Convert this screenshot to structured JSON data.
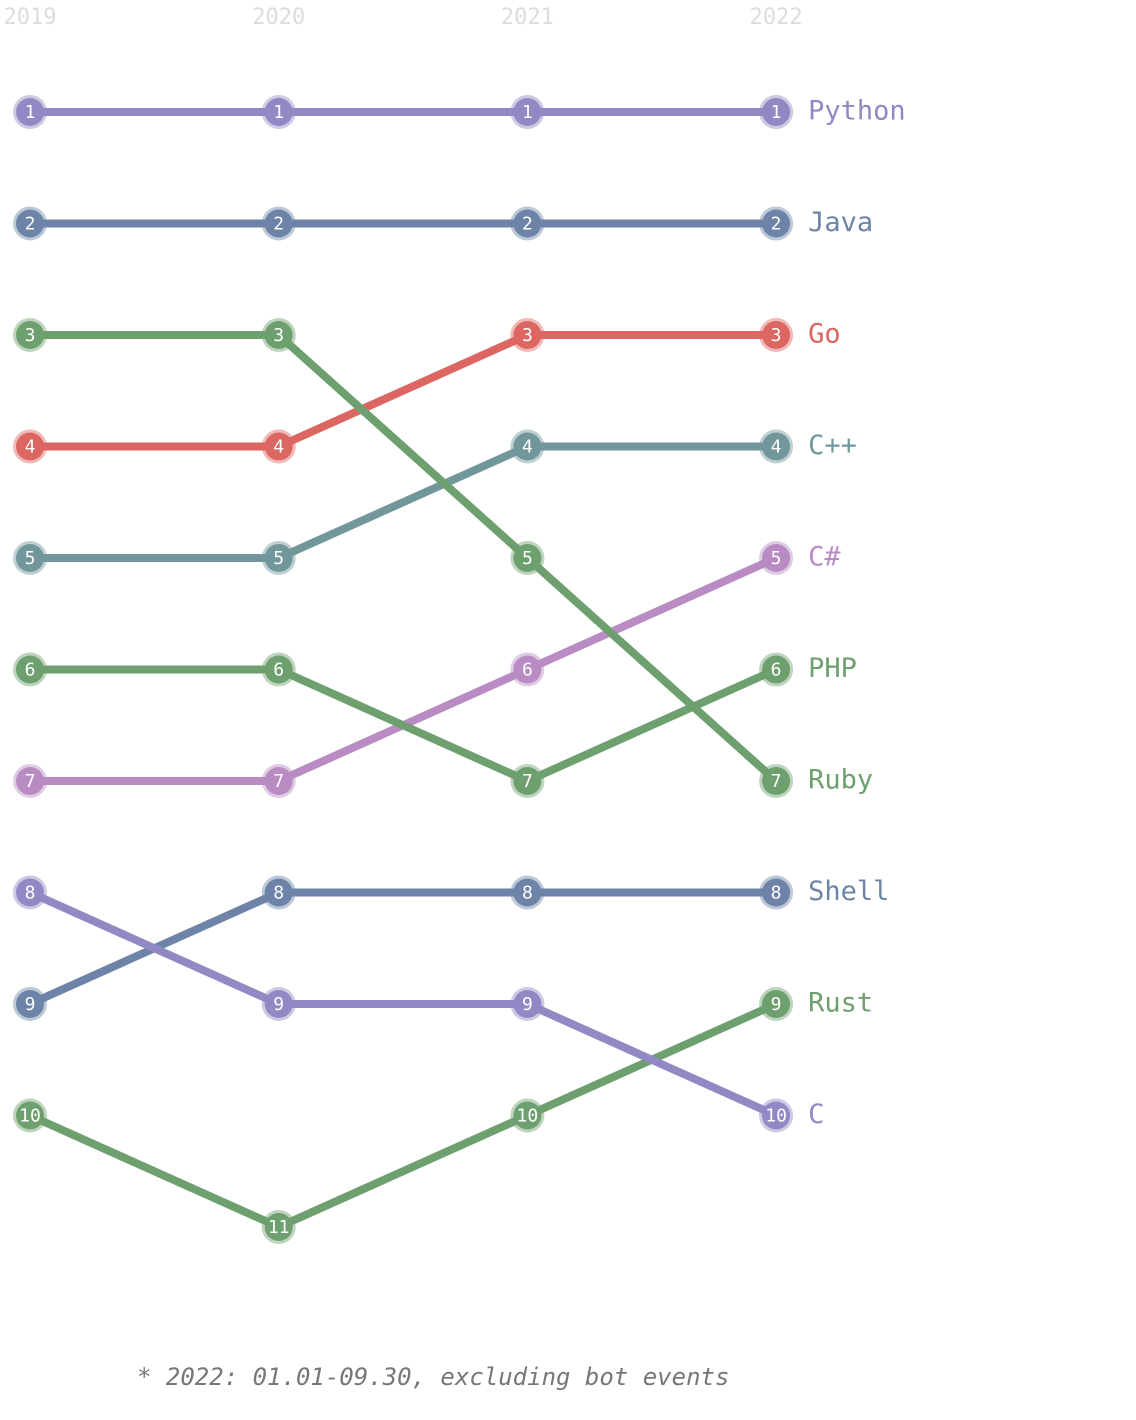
{
  "chart_data": {
    "type": "bump",
    "x": [
      "2019",
      "2020",
      "2021",
      "2022"
    ],
    "ylim": [
      1,
      11
    ],
    "invert_y": true,
    "series": [
      {
        "name": "Python",
        "color": "#9189c4",
        "values": [
          1,
          1,
          1,
          1
        ]
      },
      {
        "name": "Java",
        "color": "#6d84a8",
        "values": [
          2,
          2,
          2,
          2
        ]
      },
      {
        "name": "Go",
        "color": "#dc6762",
        "values": [
          4,
          4,
          3,
          3
        ]
      },
      {
        "name": "C++",
        "color": "#71969b",
        "values": [
          5,
          5,
          4,
          4
        ]
      },
      {
        "name": "C#",
        "color": "#b88bc3",
        "values": [
          7,
          7,
          6,
          5
        ]
      },
      {
        "name": "PHP",
        "color": "#6ea06f",
        "values": [
          6,
          6,
          7,
          6
        ]
      },
      {
        "name": "Ruby",
        "color": "#6ea06f",
        "values": [
          3,
          3,
          5,
          7
        ]
      },
      {
        "name": "Shell",
        "color": "#6d84a8",
        "values": [
          9,
          8,
          8,
          8
        ]
      },
      {
        "name": "Rust",
        "color": "#6ea06f",
        "values": [
          10,
          11,
          10,
          9
        ]
      },
      {
        "name": "C",
        "color": "#9189c4",
        "values": [
          8,
          9,
          9,
          10
        ]
      }
    ],
    "note": "* 2022: 01.01-09.30, excluding bot events"
  }
}
